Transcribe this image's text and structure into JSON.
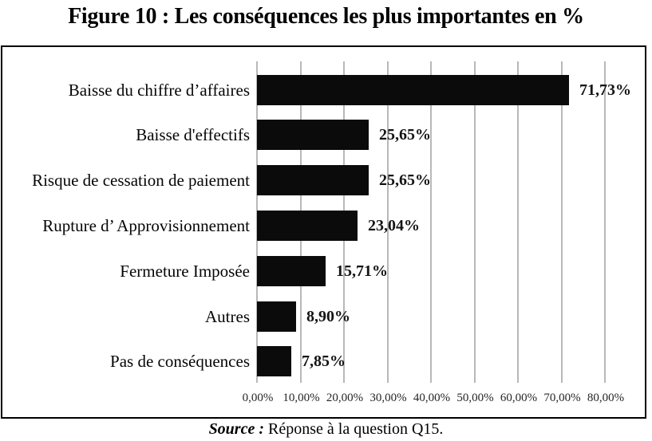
{
  "figure": {
    "title": "Figure 10 : Les conséquences les plus importantes en %",
    "source_prefix": "Source :",
    "source_text": " Réponse à la question Q15."
  },
  "chart_data": {
    "type": "bar",
    "orientation": "horizontal",
    "title": "Figure 10 : Les conséquences les plus importantes en %",
    "categories": [
      "Baisse du chiffre d’affaires",
      "Baisse d'effectifs",
      "Risque de cessation de paiement",
      "Rupture d’ Approvisionnement",
      "Fermeture Imposée",
      "Autres",
      "Pas de conséquences"
    ],
    "values": [
      71.73,
      25.65,
      25.65,
      23.04,
      15.71,
      8.9,
      7.85
    ],
    "value_labels": [
      "71,73%",
      "25,65%",
      "25,65%",
      "23,04%",
      "15,71%",
      "8,90%",
      "7,85%"
    ],
    "x_ticks": [
      "0,00%",
      "10,00%",
      "20,00%",
      "30,00%",
      "40,00%",
      "50,00%",
      "60,00%",
      "70,00%",
      "80,00%"
    ],
    "x_tick_values": [
      0,
      10,
      20,
      30,
      40,
      50,
      60,
      70,
      80
    ],
    "xlim": [
      0,
      80
    ],
    "grid": true,
    "legend": false,
    "bar_color": "#0b0b0b",
    "gridline_color": "#b8b8b8",
    "background_color": "#ffffff"
  }
}
